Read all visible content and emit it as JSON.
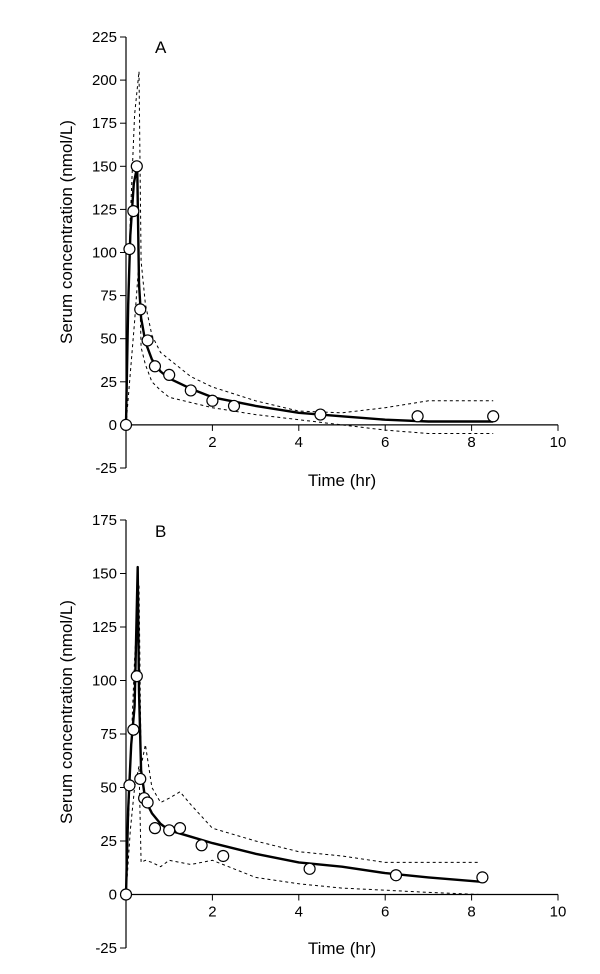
{
  "chart_data": [
    {
      "type": "line",
      "panel_label": "A",
      "xlabel": "Time (hr)",
      "ylabel": "Serum concentration (nmol/L)",
      "xlim": [
        0,
        10
      ],
      "ylim": [
        -25,
        225
      ],
      "x_ticks": [
        2,
        4,
        6,
        8,
        10
      ],
      "y_ticks": [
        -25,
        0,
        25,
        50,
        75,
        100,
        125,
        150,
        175,
        200,
        225
      ],
      "observed": {
        "marker": "open-circle",
        "x": [
          0.0,
          0.08,
          0.17,
          0.25,
          0.33,
          0.5,
          0.67,
          1.0,
          1.5,
          2.0,
          2.5,
          4.5,
          6.75,
          8.5
        ],
        "y": [
          0,
          102,
          124,
          150,
          67,
          49,
          34,
          29,
          20,
          14,
          11,
          6,
          5,
          5
        ]
      },
      "series": [
        {
          "style": "solid-bold",
          "x": [
            0,
            0.05,
            0.1,
            0.18,
            0.26,
            0.3,
            0.35,
            0.45,
            0.6,
            0.8,
            1.0,
            1.5,
            2.0,
            3.0,
            4.0,
            5.0,
            6.0,
            7.0,
            8.5
          ],
          "y": [
            0,
            70,
            110,
            140,
            150,
            82,
            62,
            48,
            38,
            31,
            27,
            21,
            16,
            11,
            7,
            5,
            3,
            2,
            2
          ]
        },
        {
          "style": "dashed",
          "x": [
            0,
            0.1,
            0.2,
            0.3,
            0.35,
            0.45,
            0.6,
            0.8,
            1.0,
            1.5,
            2.0,
            3.0,
            4.0,
            5.0,
            6.0,
            7.0,
            8.5
          ],
          "y": [
            0,
            120,
            180,
            205,
            95,
            70,
            52,
            42,
            38,
            28,
            22,
            14,
            8,
            7,
            10,
            14,
            14
          ]
        },
        {
          "style": "dashed",
          "x": [
            0,
            0.1,
            0.2,
            0.3,
            0.35,
            0.45,
            0.6,
            0.8,
            1.0,
            1.5,
            2.0,
            3.0,
            4.0,
            5.0,
            6.0,
            7.0,
            8.5
          ],
          "y": [
            0,
            30,
            60,
            95,
            45,
            35,
            25,
            20,
            16,
            13,
            10,
            6,
            3,
            0,
            -3,
            -5,
            -5
          ]
        }
      ]
    },
    {
      "type": "line",
      "panel_label": "B",
      "xlabel": "Time (hr)",
      "ylabel": "Serum concentration (nmol/L)",
      "xlim": [
        0,
        10
      ],
      "ylim": [
        -25,
        175
      ],
      "x_ticks": [
        2,
        4,
        6,
        8,
        10
      ],
      "y_ticks": [
        -25,
        0,
        25,
        50,
        75,
        100,
        125,
        150,
        175
      ],
      "observed": {
        "marker": "open-circle",
        "x": [
          0.0,
          0.08,
          0.17,
          0.25,
          0.33,
          0.42,
          0.5,
          0.67,
          1.0,
          1.25,
          1.75,
          2.25,
          4.25,
          6.25,
          8.25
        ],
        "y": [
          0,
          51,
          77,
          102,
          54,
          45,
          43,
          31,
          30,
          31,
          23,
          18,
          12,
          9,
          8
        ]
      },
      "series": [
        {
          "style": "solid-bold",
          "x": [
            0,
            0.05,
            0.12,
            0.2,
            0.27,
            0.3,
            0.35,
            0.45,
            0.6,
            0.8,
            1.0,
            1.5,
            2.0,
            3.0,
            4.0,
            5.0,
            6.0,
            7.0,
            8.2
          ],
          "y": [
            0,
            40,
            70,
            88,
            153,
            95,
            58,
            44,
            38,
            33,
            30,
            27,
            24,
            19,
            15,
            13,
            10,
            8,
            6
          ]
        },
        {
          "style": "dashed",
          "x": [
            0,
            0.1,
            0.2,
            0.3,
            0.35,
            0.45,
            0.6,
            0.8,
            1.0,
            1.25,
            1.5,
            2.0,
            3.0,
            4.0,
            5.0,
            6.0,
            7.0,
            8.2
          ],
          "y": [
            0,
            60,
            110,
            145,
            60,
            70,
            50,
            43,
            45,
            48,
            42,
            31,
            25,
            20,
            18,
            15,
            15,
            15
          ]
        },
        {
          "style": "dashed",
          "x": [
            0,
            0.1,
            0.2,
            0.3,
            0.35,
            0.45,
            0.6,
            0.8,
            1.0,
            1.25,
            1.5,
            2.0,
            3.0,
            4.0,
            5.0,
            6.0,
            7.0,
            8.2
          ],
          "y": [
            0,
            30,
            50,
            60,
            15,
            16,
            15,
            13,
            16,
            15,
            14,
            16,
            8,
            5,
            3,
            2,
            1,
            0
          ]
        }
      ]
    }
  ]
}
